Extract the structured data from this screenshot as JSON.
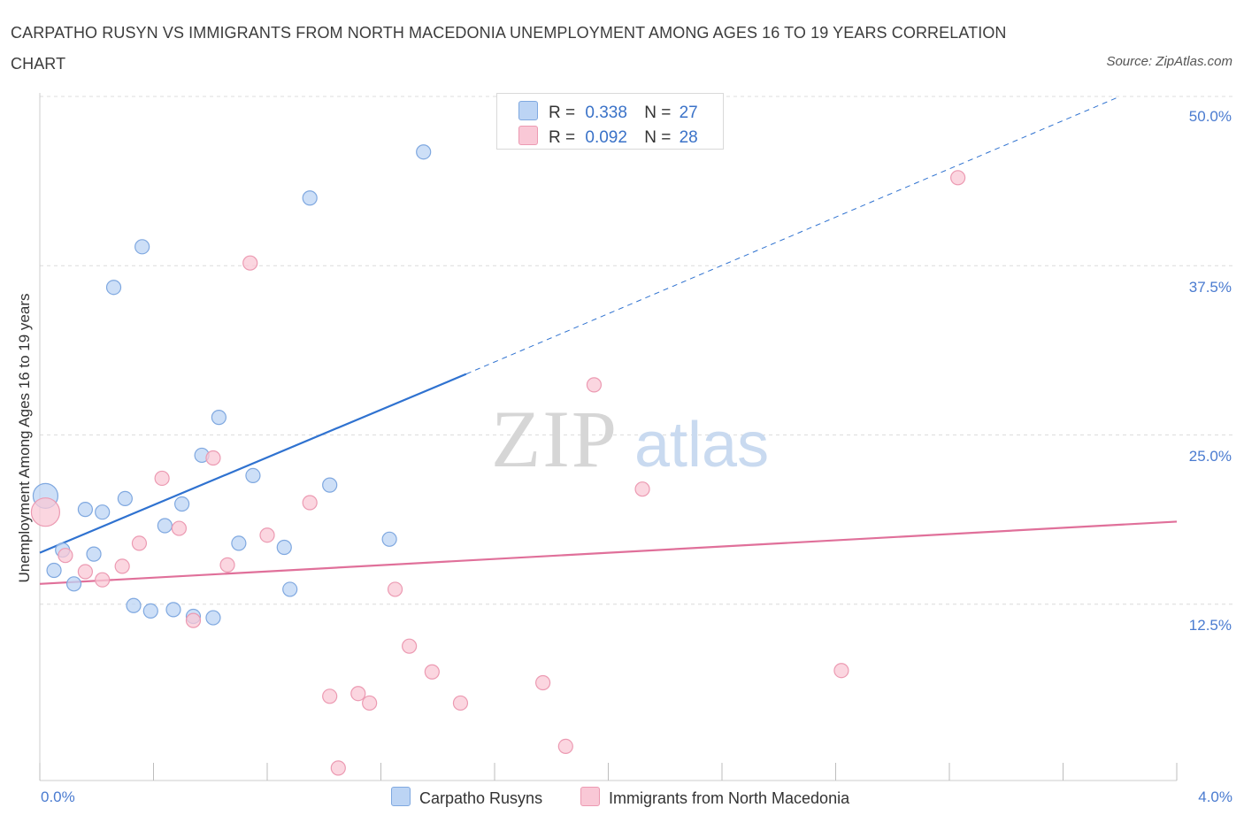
{
  "header": {
    "title": "CARPATHO RUSYN VS IMMIGRANTS FROM NORTH MACEDONIA UNEMPLOYMENT AMONG AGES 16 TO 19 YEARS CORRELATION CHART",
    "source": "Source: ZipAtlas.com"
  },
  "watermark": {
    "zip": "ZIP",
    "atlas": "atlas"
  },
  "legend": {
    "series1": {
      "r_label": "R =",
      "r_value": "0.338",
      "n_label": "N =",
      "n_value": "27"
    },
    "series2": {
      "r_label": "R =",
      "r_value": "0.092",
      "n_label": "N =",
      "n_value": "28"
    }
  },
  "bottom_legend": {
    "series1": "Carpatho Rusyns",
    "series2": "Immigrants from North Macedonia"
  },
  "colors": {
    "blue_fill": "#bcd4f4",
    "blue_stroke": "#7fa8e0",
    "blue_line": "#2f72d0",
    "pink_fill": "#f9c8d6",
    "pink_stroke": "#ec9ab2",
    "pink_line": "#e0709a",
    "grid": "#dcdcdc",
    "tick_text": "#4a7bd0"
  },
  "chart_data": {
    "type": "scatter",
    "title": "CARPATHO RUSYN VS IMMIGRANTS FROM NORTH MACEDONIA UNEMPLOYMENT AMONG AGES 16 TO 19 YEARS CORRELATION CHART",
    "xlabel": "",
    "ylabel": "Unemployment Among Ages 16 to 19 years",
    "xlim": [
      0,
      4.0
    ],
    "ylim": [
      0,
      50
    ],
    "x_unit": "%",
    "y_unit": "%",
    "x_tick_labels": [
      "0.0%",
      "4.0%"
    ],
    "y_tick_labels": [
      "12.5%",
      "25.0%",
      "37.5%",
      "50.0%"
    ],
    "y_ticks": [
      12.5,
      25.0,
      37.5,
      50.0
    ],
    "grid": true,
    "legend_position": "top-center",
    "series": [
      {
        "name": "Carpatho Rusyns",
        "color": "#bcd4f4",
        "R": 0.338,
        "N": 27,
        "points": [
          [
            0.02,
            20.5
          ],
          [
            0.05,
            15.0
          ],
          [
            0.08,
            16.5
          ],
          [
            0.12,
            14.0
          ],
          [
            0.16,
            19.5
          ],
          [
            0.19,
            16.2
          ],
          [
            0.22,
            19.3
          ],
          [
            0.26,
            35.9
          ],
          [
            0.3,
            20.3
          ],
          [
            0.33,
            12.4
          ],
          [
            0.36,
            38.9
          ],
          [
            0.39,
            12.0
          ],
          [
            0.44,
            18.3
          ],
          [
            0.47,
            12.1
          ],
          [
            0.5,
            19.9
          ],
          [
            0.54,
            11.6
          ],
          [
            0.57,
            23.5
          ],
          [
            0.61,
            11.5
          ],
          [
            0.63,
            26.3
          ],
          [
            0.7,
            17.0
          ],
          [
            0.75,
            22.0
          ],
          [
            0.86,
            16.7
          ],
          [
            0.88,
            13.6
          ],
          [
            0.95,
            42.5
          ],
          [
            1.02,
            21.3
          ],
          [
            1.23,
            17.3
          ],
          [
            1.35,
            45.9
          ]
        ],
        "trendline": {
          "x": [
            0.0,
            1.5
          ],
          "y": [
            16.3,
            29.5
          ],
          "extended_x": [
            1.5,
            3.8
          ],
          "extended_y": [
            29.5,
            50.0
          ]
        }
      },
      {
        "name": "Immigrants from North Macedonia",
        "color": "#f9c8d6",
        "R": 0.092,
        "N": 28,
        "points": [
          [
            0.02,
            19.3
          ],
          [
            0.09,
            16.1
          ],
          [
            0.16,
            14.9
          ],
          [
            0.22,
            14.3
          ],
          [
            0.29,
            15.3
          ],
          [
            0.35,
            17.0
          ],
          [
            0.43,
            21.8
          ],
          [
            0.49,
            18.1
          ],
          [
            0.54,
            11.3
          ],
          [
            0.61,
            23.3
          ],
          [
            0.66,
            15.4
          ],
          [
            0.74,
            37.7
          ],
          [
            0.8,
            17.6
          ],
          [
            0.95,
            20.0
          ],
          [
            1.02,
            5.7
          ],
          [
            1.05,
            0.4
          ],
          [
            1.12,
            5.9
          ],
          [
            1.16,
            5.2
          ],
          [
            1.25,
            13.6
          ],
          [
            1.3,
            9.4
          ],
          [
            1.38,
            7.5
          ],
          [
            1.48,
            5.2
          ],
          [
            1.77,
            6.7
          ],
          [
            1.85,
            2.0
          ],
          [
            1.95,
            28.7
          ],
          [
            2.12,
            21.0
          ],
          [
            2.82,
            7.6
          ],
          [
            3.23,
            44.0
          ]
        ],
        "trendline": {
          "x": [
            0.0,
            4.0
          ],
          "y": [
            14.0,
            18.6
          ]
        }
      }
    ]
  }
}
